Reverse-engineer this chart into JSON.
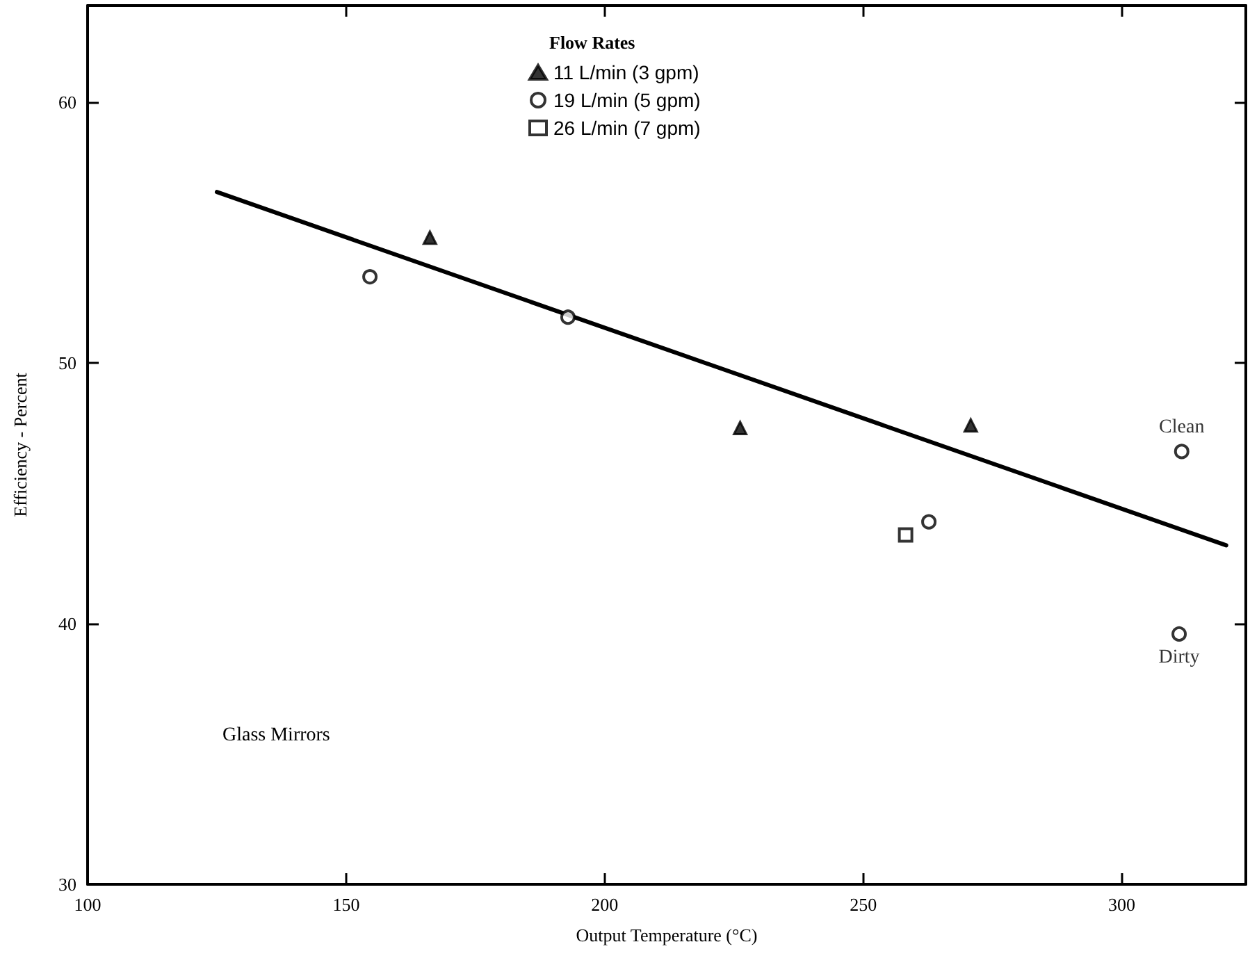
{
  "chart_data": {
    "type": "scatter",
    "xlabel": "Output Temperature (°C)",
    "ylabel": "Efficiency - Percent",
    "legend_title": "Flow Rates",
    "legend": "top",
    "grid": false,
    "xlim": [
      100,
      324
    ],
    "xticks": [
      100,
      150,
      200,
      250,
      300
    ],
    "ylim": [
      30,
      63.7
    ],
    "yticks": [
      30,
      40,
      50,
      60
    ],
    "series": [
      {
        "name": "11 L/min (3 gpm)",
        "color": "#000000",
        "marker": "triangle",
        "x": [
          166.2,
          226.2,
          270.8
        ],
        "values": [
          54.8,
          47.5,
          47.6
        ]
      },
      {
        "name": "19 L/min (5 gpm)",
        "color": "#000000",
        "marker": "circle",
        "x": [
          154.6,
          192.9,
          262.7,
          311.6,
          311.1
        ],
        "values": [
          53.3,
          51.75,
          43.9,
          46.6,
          39.6
        ]
      },
      {
        "name": "26 L/min (7 gpm)",
        "color": "#000000",
        "marker": "square",
        "x": [
          258.2
        ],
        "values": [
          43.4
        ]
      },
      {
        "type": "line",
        "color": "#000000",
        "marker": "none",
        "line_style": "solid",
        "x": [
          125,
          320.2
        ],
        "values": [
          56.55,
          43.0
        ]
      }
    ],
    "annotations": [
      {
        "text": "Clean",
        "x": 311.6,
        "y": 46.6
      },
      {
        "text": "Dirty",
        "x": 311.1,
        "y": 39.6
      },
      "Glass Mirrors"
    ]
  }
}
